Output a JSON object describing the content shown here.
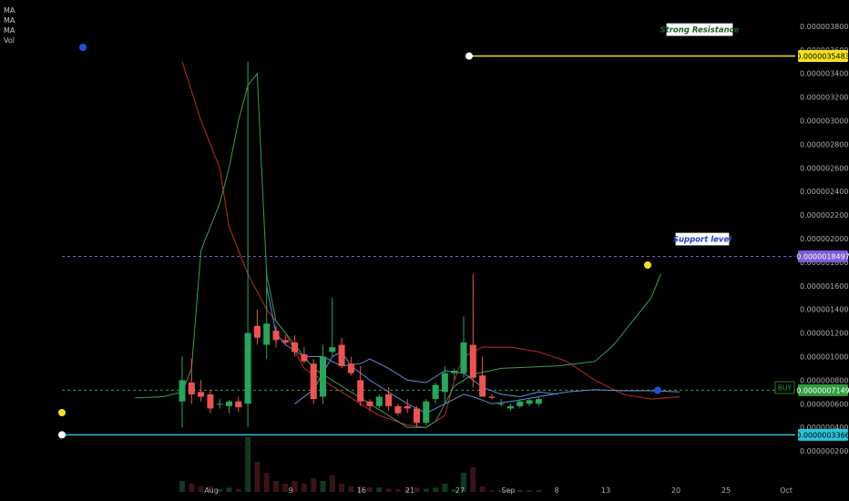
{
  "legend": [
    "MA",
    "MA",
    "MA",
    "Vol"
  ],
  "colors": {
    "background": "#000000",
    "bull": "#26a65b",
    "bear": "#ef5350",
    "resistance": "#f5e31a",
    "support": "#7b5bd6",
    "current": "#2e9e3e",
    "bottom": "#26c6da",
    "ma_red": "#c62828",
    "ma_green": "#3f9b4f",
    "ma_blue": "#5b8fd6",
    "grid_text": "#b0b0b0"
  },
  "chart_data": {
    "type": "candlestick",
    "y_axis": {
      "ticks": [
        "0.0000038000",
        "0.0000036000",
        "0.0000034000",
        "0.0000032000",
        "0.0000030000",
        "0.0000028000",
        "0.0000026000",
        "0.0000024000",
        "0.0000022000",
        "0.0000020000",
        "0.0000018000",
        "0.0000016000",
        "0.0000014000",
        "0.0000012000",
        "0.0000010000",
        "0.0000008000",
        "0.0000006000",
        "0.0000004000",
        "0.0000002000"
      ],
      "range": [
        1e-07,
        3.9e-06
      ]
    },
    "x_axis": {
      "ticks": [
        "Aug",
        "9",
        "16",
        "21",
        "27",
        "Sep",
        "8",
        "13",
        "20",
        "25",
        "Oct"
      ]
    },
    "price_tags": [
      {
        "id": "resistance",
        "label": "0.0000035483",
        "value": 3.5483e-06
      },
      {
        "id": "support",
        "label": "0.0000018497",
        "value": 1.8497e-06
      },
      {
        "id": "current",
        "label": "0.0000007149",
        "value": 7.149e-07
      },
      {
        "id": "bottom",
        "label": "0.0000003366",
        "value": 3.366e-07
      }
    ],
    "annotations": [
      {
        "id": "resistance",
        "text": "Strong Resistance"
      },
      {
        "id": "support",
        "text": "Support level"
      },
      {
        "id": "buy",
        "text": "BUY"
      }
    ],
    "candles": [
      {
        "o": 6.2e-07,
        "h": 1e-06,
        "l": 4e-07,
        "c": 8e-07
      },
      {
        "o": 7.8e-07,
        "h": 9.8e-07,
        "l": 6e-07,
        "c": 6.8e-07
      },
      {
        "o": 7e-07,
        "h": 8e-07,
        "l": 6.2e-07,
        "c": 6.6e-07
      },
      {
        "o": 6.8e-07,
        "h": 7.2e-07,
        "l": 5.2e-07,
        "c": 5.6e-07
      },
      {
        "o": 6e-07,
        "h": 6.4e-07,
        "l": 5.6e-07,
        "c": 6e-07
      },
      {
        "o": 5.8e-07,
        "h": 6.3e-07,
        "l": 5.2e-07,
        "c": 6.2e-07
      },
      {
        "o": 6.2e-07,
        "h": 6.6e-07,
        "l": 5.3e-07,
        "c": 5.7e-07
      },
      {
        "o": 6e-07,
        "h": 3.5e-06,
        "l": 4e-07,
        "c": 1.2e-06
      },
      {
        "o": 1.26e-06,
        "h": 1.4e-06,
        "l": 1.1e-06,
        "c": 1.16e-06
      },
      {
        "o": 1.1e-06,
        "h": 1.76e-06,
        "l": 9.8e-07,
        "c": 1.28e-06
      },
      {
        "o": 1.22e-06,
        "h": 1.26e-06,
        "l": 1.08e-06,
        "c": 1.14e-06
      },
      {
        "o": 1.14e-06,
        "h": 1.18e-06,
        "l": 1.1e-06,
        "c": 1.12e-06
      },
      {
        "o": 1.12e-06,
        "h": 1.18e-06,
        "l": 1e-06,
        "c": 1.04e-06
      },
      {
        "o": 1.02e-06,
        "h": 1.08e-06,
        "l": 9.4e-07,
        "c": 9.6e-07
      },
      {
        "o": 9.4e-07,
        "h": 9.8e-07,
        "l": 6e-07,
        "c": 6.4e-07
      },
      {
        "o": 6.6e-07,
        "h": 1.1e-06,
        "l": 6e-07,
        "c": 1e-06
      },
      {
        "o": 1.04e-06,
        "h": 1.5e-06,
        "l": 1e-06,
        "c": 1.08e-06
      },
      {
        "o": 1.1e-06,
        "h": 1.16e-06,
        "l": 9e-07,
        "c": 9.2e-07
      },
      {
        "o": 9.4e-07,
        "h": 1e-06,
        "l": 8.4e-07,
        "c": 8.6e-07
      },
      {
        "o": 8e-07,
        "h": 9.2e-07,
        "l": 5.8e-07,
        "c": 6.2e-07
      },
      {
        "o": 6.2e-07,
        "h": 6.4e-07,
        "l": 5.4e-07,
        "c": 5.8e-07
      },
      {
        "o": 5.8e-07,
        "h": 6.8e-07,
        "l": 5.6e-07,
        "c": 6.6e-07
      },
      {
        "o": 6.8e-07,
        "h": 7.4e-07,
        "l": 5.4e-07,
        "c": 5.8e-07
      },
      {
        "o": 5.8e-07,
        "h": 6e-07,
        "l": 5e-07,
        "c": 5.2e-07
      },
      {
        "o": 5.8e-07,
        "h": 6.4e-07,
        "l": 5.2e-07,
        "c": 5.6e-07
      },
      {
        "o": 5.6e-07,
        "h": 5.8e-07,
        "l": 4e-07,
        "c": 4.4e-07
      },
      {
        "o": 4.4e-07,
        "h": 6.4e-07,
        "l": 4.2e-07,
        "c": 6.2e-07
      },
      {
        "o": 6.4e-07,
        "h": 7.8e-07,
        "l": 6e-07,
        "c": 7.6e-07
      },
      {
        "o": 7e-07,
        "h": 9.2e-07,
        "l": 6e-07,
        "c": 8.6e-07
      },
      {
        "o": 8.6e-07,
        "h": 9e-07,
        "l": 8e-07,
        "c": 8.8e-07
      },
      {
        "o": 8.6e-07,
        "h": 1.34e-06,
        "l": 8.2e-07,
        "c": 1.12e-06
      },
      {
        "o": 1.1e-06,
        "h": 1.7e-06,
        "l": 7.4e-07,
        "c": 8.2e-07
      },
      {
        "o": 8.4e-07,
        "h": 1e-06,
        "l": 6.6e-07,
        "c": 6.6e-07
      },
      {
        "o": 6.6e-07,
        "h": 6.8e-07,
        "l": 6.4e-07,
        "c": 6.5e-07
      },
      {
        "o": 6e-07,
        "h": 6.4e-07,
        "l": 5.8e-07,
        "c": 6e-07
      },
      {
        "o": 5.6e-07,
        "h": 6e-07,
        "l": 5.4e-07,
        "c": 5.8e-07
      },
      {
        "o": 5.8e-07,
        "h": 6.4e-07,
        "l": 5.6e-07,
        "c": 6.2e-07
      },
      {
        "o": 6e-07,
        "h": 6.4e-07,
        "l": 5.8e-07,
        "c": 6.3e-07
      },
      {
        "o": 6e-07,
        "h": 6.6e-07,
        "l": 5.8e-07,
        "c": 6.4e-07
      }
    ],
    "ma_series": [
      {
        "color_key": "ma_red",
        "points": [
          [
            0,
            3.5e-06
          ],
          [
            2,
            3e-06
          ],
          [
            4,
            2.6e-06
          ],
          [
            5,
            2.1e-06
          ],
          [
            7,
            1.7e-06
          ],
          [
            9,
            1.4e-06
          ],
          [
            11,
            1.2e-06
          ],
          [
            13,
            9e-07
          ],
          [
            15,
            8e-07
          ],
          [
            17,
            7e-07
          ],
          [
            19,
            6e-07
          ],
          [
            21,
            5e-07
          ],
          [
            24,
            4.2e-07
          ],
          [
            26,
            4e-07
          ],
          [
            28,
            5e-07
          ],
          [
            29,
            8e-07
          ],
          [
            30,
            1e-06
          ],
          [
            32,
            1.08e-06
          ],
          [
            35,
            1.08e-06
          ],
          [
            38,
            1.04e-06
          ],
          [
            41,
            9.6e-07
          ],
          [
            44,
            8e-07
          ],
          [
            47,
            6.8e-07
          ],
          [
            50,
            6.4e-07
          ],
          [
            53,
            6.6e-07
          ]
        ]
      },
      {
        "color_key": "ma_green",
        "points": [
          [
            -5,
            6.5e-07
          ],
          [
            -2,
            6.6e-07
          ],
          [
            0,
            7e-07
          ],
          [
            1,
            9e-07
          ],
          [
            2,
            1.9e-06
          ],
          [
            3,
            2.1e-06
          ],
          [
            4,
            2.3e-06
          ],
          [
            5,
            2.6e-06
          ],
          [
            6,
            3e-06
          ],
          [
            7,
            3.3e-06
          ],
          [
            8,
            3.4e-06
          ],
          [
            8,
            3.38e-06
          ],
          [
            9,
            1.7e-06
          ],
          [
            10,
            1.3e-06
          ],
          [
            12,
            1.1e-06
          ],
          [
            14,
            9e-07
          ],
          [
            16,
            8e-07
          ],
          [
            18,
            7e-07
          ],
          [
            20,
            6e-07
          ],
          [
            22,
            5e-07
          ],
          [
            24,
            4e-07
          ],
          [
            26,
            4e-07
          ],
          [
            27,
            4.5e-07
          ],
          [
            28,
            6e-07
          ],
          [
            29,
            7.5e-07
          ],
          [
            31,
            8.5e-07
          ],
          [
            34,
            9e-07
          ],
          [
            40,
            9.2e-07
          ],
          [
            44,
            9.6e-07
          ],
          [
            46,
            1.1e-06
          ],
          [
            48,
            1.3e-06
          ],
          [
            50,
            1.5e-06
          ],
          [
            51,
            1.7e-06
          ]
        ]
      },
      {
        "color_key": "ma_blue",
        "points": [
          [
            9,
            1.6e-06
          ],
          [
            10,
            1.2e-06
          ],
          [
            11,
            1.1e-06
          ],
          [
            13,
            1e-06
          ],
          [
            15,
            1e-06
          ],
          [
            17,
            9.2e-07
          ],
          [
            19,
            9.4e-07
          ],
          [
            20,
            9.8e-07
          ],
          [
            22,
            9e-07
          ],
          [
            24,
            8e-07
          ],
          [
            26,
            7.8e-07
          ],
          [
            28,
            8.8e-07
          ],
          [
            30,
            8.6e-07
          ],
          [
            32,
            7.4e-07
          ],
          [
            34,
            6.8e-07
          ],
          [
            36,
            6.6e-07
          ],
          [
            38,
            7e-07
          ],
          [
            40,
            6.8e-07
          ]
        ]
      },
      {
        "color_key": "ma_blue",
        "points": [
          [
            12,
            6e-07
          ],
          [
            14,
            7.2e-07
          ],
          [
            16,
            1e-06
          ],
          [
            17,
            1.04e-06
          ],
          [
            18,
            9.2e-07
          ],
          [
            20,
            8e-07
          ],
          [
            22,
            7e-07
          ],
          [
            24,
            6e-07
          ],
          [
            26,
            5.2e-07
          ],
          [
            28,
            6e-07
          ],
          [
            30,
            6.8e-07
          ],
          [
            31,
            6.6e-07
          ],
          [
            33,
            6e-07
          ],
          [
            35,
            6.2e-07
          ],
          [
            38,
            6.6e-07
          ],
          [
            41,
            7e-07
          ],
          [
            44,
            7.2e-07
          ],
          [
            47,
            7.1e-07
          ],
          [
            50,
            7.1e-07
          ],
          [
            53,
            7e-07
          ]
        ]
      }
    ],
    "volume": [
      {
        "v": 0.2,
        "c": "bull"
      },
      {
        "v": 0.15,
        "c": "bear"
      },
      {
        "v": 0.1,
        "c": "bear"
      },
      {
        "v": 0.1,
        "c": "bear"
      },
      {
        "v": 0.05,
        "c": "bull"
      },
      {
        "v": 0.08,
        "c": "bull"
      },
      {
        "v": 0.05,
        "c": "bear"
      },
      {
        "v": 1.0,
        "c": "bull"
      },
      {
        "v": 0.55,
        "c": "bear"
      },
      {
        "v": 0.35,
        "c": "bear"
      },
      {
        "v": 0.2,
        "c": "bear"
      },
      {
        "v": 0.15,
        "c": "bear"
      },
      {
        "v": 0.2,
        "c": "bear"
      },
      {
        "v": 0.15,
        "c": "bear"
      },
      {
        "v": 0.25,
        "c": "bear"
      },
      {
        "v": 0.2,
        "c": "bull"
      },
      {
        "v": 0.3,
        "c": "bear"
      },
      {
        "v": 0.15,
        "c": "bear"
      },
      {
        "v": 0.1,
        "c": "bear"
      },
      {
        "v": 0.1,
        "c": "bear"
      },
      {
        "v": 0.08,
        "c": "bear"
      },
      {
        "v": 0.08,
        "c": "bull"
      },
      {
        "v": 0.06,
        "c": "bear"
      },
      {
        "v": 0.05,
        "c": "bear"
      },
      {
        "v": 0.06,
        "c": "bear"
      },
      {
        "v": 0.08,
        "c": "bear"
      },
      {
        "v": 0.06,
        "c": "bull"
      },
      {
        "v": 0.08,
        "c": "bull"
      },
      {
        "v": 0.15,
        "c": "bull"
      },
      {
        "v": 0.05,
        "c": "bull"
      },
      {
        "v": 0.35,
        "c": "bull"
      },
      {
        "v": 0.45,
        "c": "bear"
      },
      {
        "v": 0.1,
        "c": "bear"
      },
      {
        "v": 0.03,
        "c": "bear"
      },
      {
        "v": 0.03,
        "c": "bull"
      },
      {
        "v": 0.03,
        "c": "bull"
      },
      {
        "v": 0.03,
        "c": "bull"
      },
      {
        "v": 0.03,
        "c": "bull"
      },
      {
        "v": 0.03,
        "c": "bull"
      }
    ]
  }
}
